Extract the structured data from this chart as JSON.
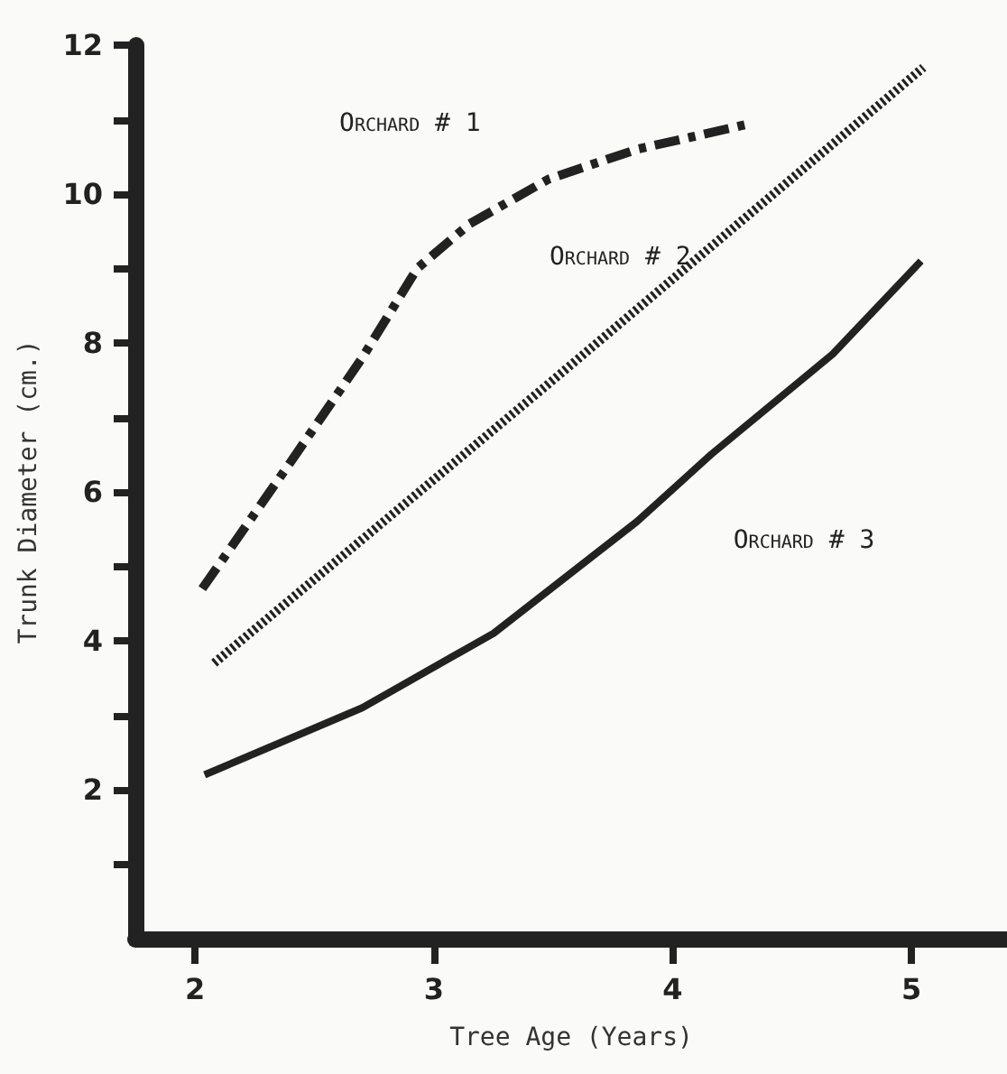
{
  "chart_data": {
    "type": "line",
    "xlabel": "Tree Age (Years)",
    "ylabel": "Trunk Diameter (cm.)",
    "xlim": [
      1.75,
      5.4
    ],
    "xticks": [
      2,
      3,
      4,
      5
    ],
    "ylim": [
      0,
      12
    ],
    "yticks": [
      {
        "value": 1,
        "label": null
      },
      2,
      {
        "value": 3,
        "label": null
      },
      4,
      {
        "value": 5,
        "label": null
      },
      6,
      {
        "value": 7,
        "label": null
      },
      8,
      {
        "value": 9,
        "label": null
      },
      10,
      {
        "value": 11,
        "label": null
      },
      12
    ],
    "grid": false,
    "legend": false,
    "marker": "none",
    "series": [
      {
        "name": "Orchard # 1",
        "color": "#222222",
        "line_style": "dashed",
        "x": [
          2.03,
          2.4,
          2.7,
          2.93,
          3.15,
          3.48,
          3.85,
          4.33
        ],
        "values": [
          4.7,
          6.4,
          7.8,
          9.0,
          9.6,
          10.2,
          10.6,
          10.95
        ]
      },
      {
        "name": "Orchard # 2",
        "color": "#222222",
        "line_style": "dotted",
        "x": [
          2.08,
          3.48,
          5.05
        ],
        "values": [
          3.7,
          7.45,
          11.7
        ]
      },
      {
        "name": "Orchard # 3",
        "color": "#222222",
        "line_style": "solid",
        "x": [
          2.04,
          2.7,
          3.25,
          3.85,
          4.16,
          4.67,
          5.04
        ],
        "values": [
          2.2,
          3.1,
          4.1,
          5.6,
          6.5,
          7.85,
          9.1
        ]
      }
    ]
  }
}
